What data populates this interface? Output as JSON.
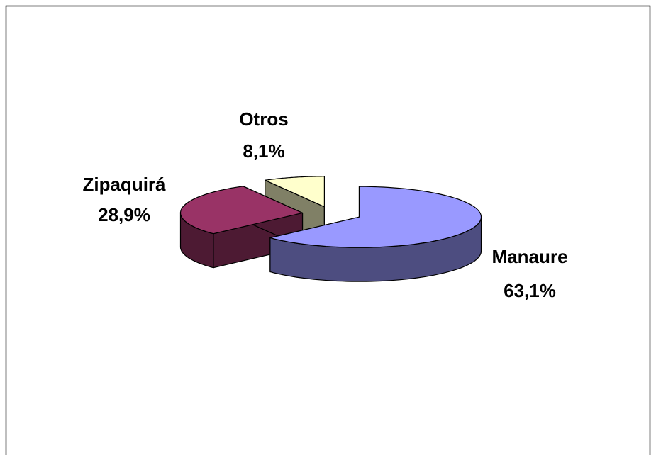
{
  "chart_data": {
    "type": "pie3d",
    "categories": [
      "Manaure",
      "Zipaquirá",
      "Otros"
    ],
    "values": [
      63.1,
      28.9,
      8.1
    ],
    "value_labels": [
      "63,1%",
      "28,9%",
      "8,1%"
    ],
    "colors": [
      "#9999ff",
      "#993366",
      "#ffffcc"
    ],
    "exploded": true
  }
}
